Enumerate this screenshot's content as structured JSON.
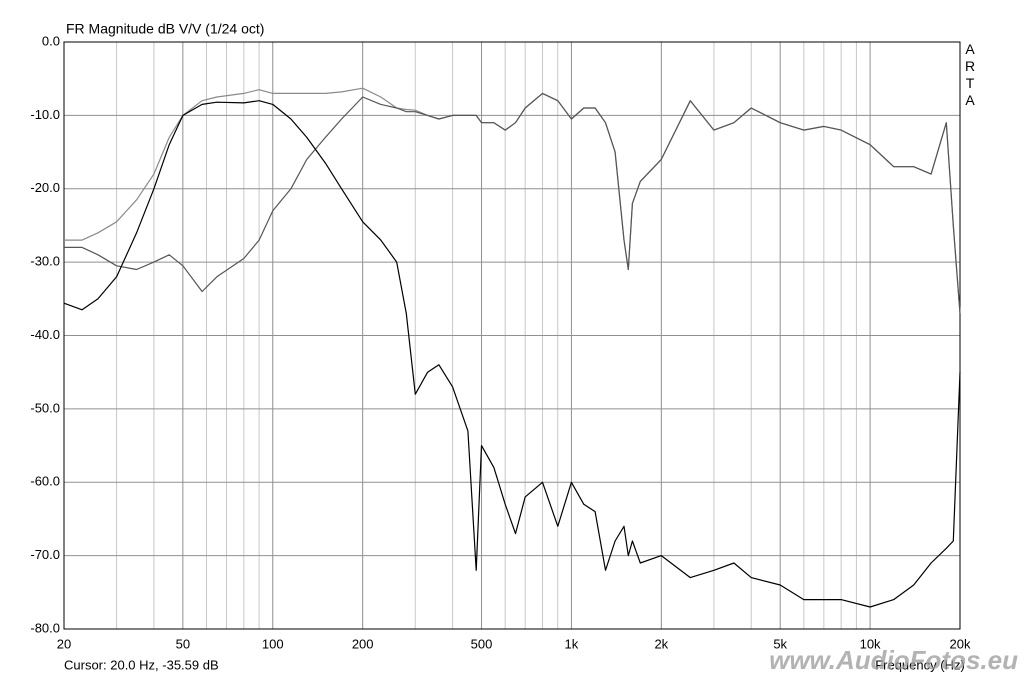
{
  "chart_data": {
    "type": "line",
    "title": "FR Magnitude dB V/V (1/24 oct)",
    "brand": "ARTA",
    "cursor": "Cursor: 20.0 Hz, -35.59 dB",
    "x_label": "Frequency (Hz)",
    "watermark": "www.AudioFotos.eu",
    "log_x": true,
    "grid": true,
    "xlim": [
      20,
      20000
    ],
    "ylim": [
      -80,
      0
    ],
    "xticks": [
      20,
      50,
      100,
      200,
      500,
      {
        "value": 1000,
        "label": "1k"
      },
      {
        "value": 2000,
        "label": "2k"
      },
      {
        "value": 5000,
        "label": "5k"
      },
      {
        "value": 10000,
        "label": "10k"
      },
      {
        "value": 20000,
        "label": "20k"
      }
    ],
    "xminor": [
      30,
      40,
      60,
      70,
      80,
      90,
      300,
      400,
      600,
      700,
      800,
      900,
      3000,
      4000,
      6000,
      7000,
      8000,
      9000
    ],
    "yticks": [
      {
        "value": 0,
        "label": "0.0"
      },
      {
        "value": -10,
        "label": "-10.0"
      },
      {
        "value": -20,
        "label": "-20.0"
      },
      {
        "value": -30,
        "label": "-30.0"
      },
      {
        "value": -40,
        "label": "-40.0"
      },
      {
        "value": -50,
        "label": "-50.0"
      },
      {
        "value": -60,
        "label": "-60.0"
      },
      {
        "value": -70,
        "label": "-70.0"
      },
      {
        "value": -80,
        "label": "-80.0"
      }
    ],
    "x": [
      20,
      23,
      26,
      30,
      35,
      40,
      45,
      50,
      58,
      65,
      80,
      90,
      100,
      115,
      130,
      150,
      170,
      200,
      230,
      260,
      280,
      300,
      330,
      360,
      400,
      450,
      480,
      500,
      550,
      600,
      650,
      700,
      800,
      900,
      1000,
      1100,
      1200,
      1300,
      1400,
      1500,
      1550,
      1600,
      1700,
      2000,
      2500,
      3000,
      3500,
      4000,
      5000,
      6000,
      7000,
      8000,
      10000,
      12000,
      14000,
      16000,
      18000,
      19000,
      20000
    ],
    "series": [
      {
        "color": "#8a8a8a",
        "values": [
          -27,
          -27,
          -26,
          -24.5,
          -21.5,
          -18,
          -13,
          -10,
          -8,
          -7.5,
          -7,
          -6.5,
          -7,
          -7,
          -7,
          -7,
          -6.8,
          -6.3,
          -7.5,
          -9,
          -9.2,
          -9.3,
          -10,
          -10.5,
          -10,
          -10,
          -10,
          -11,
          -11,
          -12,
          -11,
          -9,
          -7,
          -8,
          -10.5,
          -9,
          -9,
          -11,
          -15,
          -27,
          -31,
          -22,
          -19,
          -16,
          -8,
          -12,
          -11,
          -9,
          -11,
          -12,
          -11.5,
          -12,
          -14,
          -17,
          -17,
          -18,
          -11,
          -25,
          -37
        ]
      },
      {
        "color": "#555555",
        "values": [
          -28,
          -28,
          -29,
          -30.5,
          -31,
          -30,
          -29,
          -30.5,
          -34,
          -32,
          -29.5,
          -27,
          -23,
          -20,
          -16,
          -13,
          -10.5,
          -7.5,
          -8.5,
          -9,
          -9.5,
          -9.5,
          -10,
          -10.5,
          -10,
          -10,
          -10,
          -11,
          -11,
          -12,
          -11,
          -9,
          -7,
          -8,
          -10.5,
          -9,
          -9,
          -11,
          -15,
          -27,
          -31,
          -22,
          -19,
          -16,
          -8,
          -12,
          -11,
          -9,
          -11,
          -12,
          -11.5,
          -12,
          -14,
          -17,
          -17,
          -18,
          -11,
          -25,
          -37
        ]
      },
      {
        "color": "#000000",
        "values": [
          -35.6,
          -36.5,
          -35,
          -32,
          -26,
          -20,
          -14,
          -10,
          -8.5,
          -8.2,
          -8.3,
          -8,
          -8.5,
          -10.5,
          -13,
          -16.5,
          -20,
          -24.5,
          -27,
          -30,
          -37,
          -48,
          -45,
          -44,
          -47,
          -53,
          -72,
          -55,
          -58,
          -63,
          -67,
          -62,
          -60,
          -66,
          -60,
          -63,
          -64,
          -72,
          -68,
          -66,
          -70,
          -68,
          -71,
          -70,
          -73,
          -72,
          -71,
          -73,
          -74,
          -76,
          -76,
          -76,
          -77,
          -76,
          -74,
          -71,
          -69,
          -68,
          -45
        ]
      }
    ]
  }
}
